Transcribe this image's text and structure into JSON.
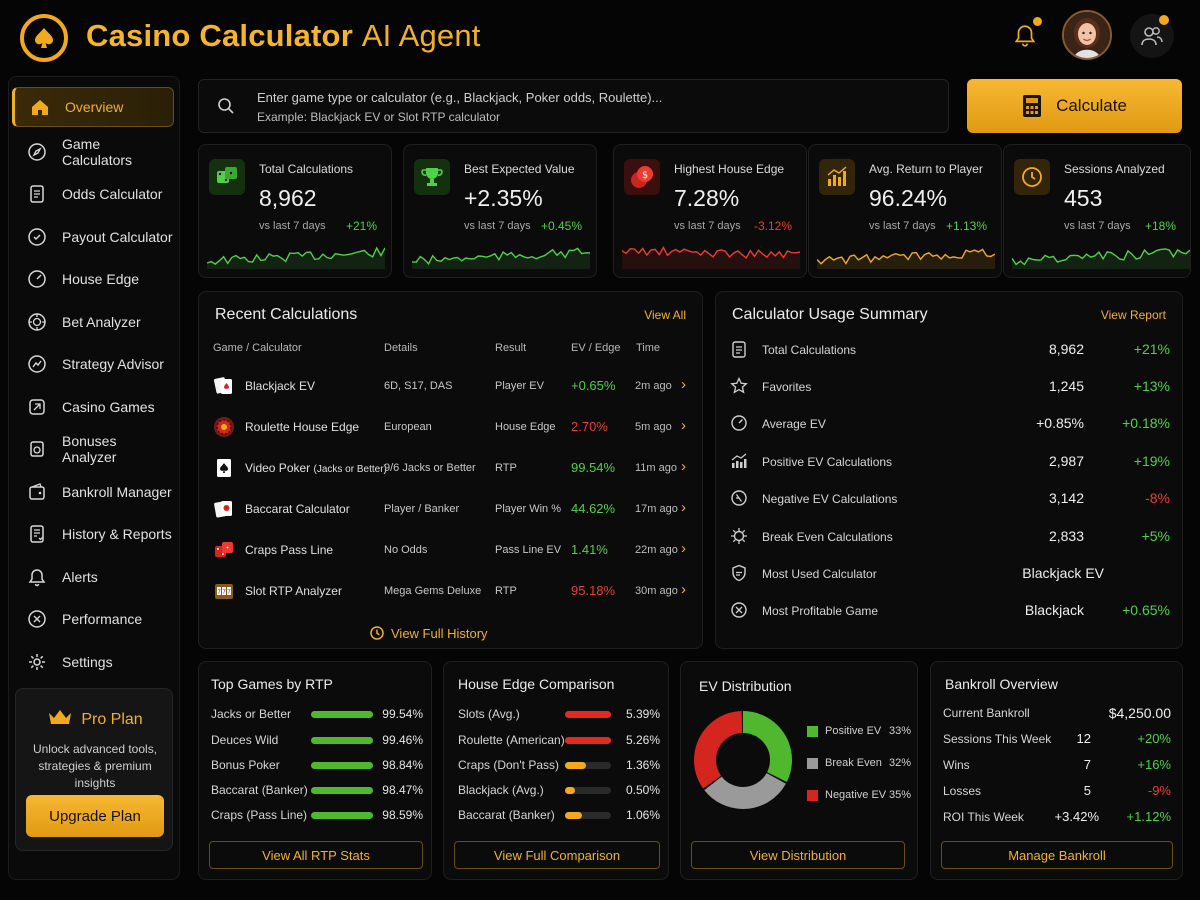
{
  "header": {
    "title_main": "Casino Calculator",
    "title_ai": "AI Agent"
  },
  "sidebar": {
    "items": [
      {
        "label": "Overview",
        "icon": "home-icon"
      },
      {
        "label": "Game Calculators",
        "icon": "compass-icon"
      },
      {
        "label": "Odds Calculator",
        "icon": "document-icon"
      },
      {
        "label": "Payout Calculator",
        "icon": "payout-icon"
      },
      {
        "label": "House Edge",
        "icon": "gauge-icon"
      },
      {
        "label": "Bet Analyzer",
        "icon": "chip-icon"
      },
      {
        "label": "Strategy Advisor",
        "icon": "strategy-icon"
      },
      {
        "label": "Casino Games",
        "icon": "games-icon"
      },
      {
        "label": "Bonuses Analyzer",
        "icon": "bonus-icon"
      },
      {
        "label": "Bankroll Manager",
        "icon": "wallet-icon"
      },
      {
        "label": "History & Reports",
        "icon": "report-icon"
      },
      {
        "label": "Alerts",
        "icon": "bell-icon"
      },
      {
        "label": "Performance",
        "icon": "performance-icon"
      },
      {
        "label": "Settings",
        "icon": "gear-icon"
      }
    ],
    "pro": {
      "title": "Pro Plan",
      "description": "Unlock advanced tools, strategies & premium insights",
      "button": "Upgrade Plan"
    }
  },
  "search": {
    "placeholder_line1": "Enter game type or calculator (e.g., Blackjack, Poker odds, Roulette)...",
    "placeholder_line2": "Example: Blackjack EV or Slot RTP calculator",
    "button": "Calculate"
  },
  "stats": [
    {
      "label": "Total Calculations",
      "value": "8,962",
      "sub": "vs last 7 days",
      "change": "+21%",
      "trend": "up",
      "color": "#4fd147"
    },
    {
      "label": "Best Expected Value",
      "value": "+2.35%",
      "sub": "vs last 7 days",
      "change": "+0.45%",
      "trend": "up",
      "color": "#4fd147"
    },
    {
      "label": "Highest House Edge",
      "value": "7.28%",
      "sub": "vs last 7 days",
      "change": "-3.12%",
      "trend": "down",
      "color": "#ee3b32"
    },
    {
      "label": "Avg. Return to Player",
      "value": "96.24%",
      "sub": "vs last 7 days",
      "change": "+1.13%",
      "trend": "up",
      "color": "#f2a91e"
    },
    {
      "label": "Sessions Analyzed",
      "value": "453",
      "sub": "vs last 7 days",
      "change": "+18%",
      "trend": "up",
      "color": "#4fd147"
    }
  ],
  "recent": {
    "title": "Recent Calculations",
    "link": "View All",
    "columns": [
      "Game / Calculator",
      "Details",
      "Result",
      "EV / Edge",
      "Time"
    ],
    "rows": [
      {
        "game": "Blackjack EV",
        "game_note": "",
        "details": "6D, S17, DAS",
        "result": "Player EV",
        "value": "+0.65%",
        "tone": "green",
        "time": "2m ago"
      },
      {
        "game": "Roulette House Edge",
        "game_note": "",
        "details": "European",
        "result": "House Edge",
        "value": "2.70%",
        "tone": "red",
        "time": "5m ago"
      },
      {
        "game": "Video Poker",
        "game_note": "(Jacks or Better)",
        "details": "9/6 Jacks or Better",
        "result": "RTP",
        "value": "99.54%",
        "tone": "green",
        "time": "11m ago"
      },
      {
        "game": "Baccarat Calculator",
        "game_note": "",
        "details": "Player / Banker",
        "result": "Player Win %",
        "value": "44.62%",
        "tone": "green",
        "time": "17m ago"
      },
      {
        "game": "Craps Pass Line",
        "game_note": "",
        "details": "No Odds",
        "result": "Pass Line EV",
        "value": "1.41%",
        "tone": "green",
        "time": "22m ago"
      },
      {
        "game": "Slot RTP Analyzer",
        "game_note": "",
        "details": "Mega Gems Deluxe",
        "result": "RTP",
        "value": "95.18%",
        "tone": "red",
        "time": "30m ago"
      }
    ],
    "history_link": "View Full History"
  },
  "usage": {
    "title": "Calculator Usage Summary",
    "link": "View Report",
    "rows": [
      {
        "label": "Total Calculations",
        "value": "8,962",
        "change": "+21%",
        "tone": "green"
      },
      {
        "label": "Favorites",
        "value": "1,245",
        "change": "+13%",
        "tone": "green"
      },
      {
        "label": "Average EV",
        "value": "+0.85%",
        "change": "+0.18%",
        "tone": "green",
        "value_tone": "green"
      },
      {
        "label": "Positive EV Calculations",
        "value": "2,987",
        "change": "+19%",
        "tone": "green"
      },
      {
        "label": "Negative EV Calculations",
        "value": "3,142",
        "change": "-8%",
        "tone": "red"
      },
      {
        "label": "Break Even Calculations",
        "value": "2,833",
        "change": "+5%",
        "tone": "green"
      },
      {
        "label": "Most Used Calculator",
        "value": "Blackjack EV",
        "change": "",
        "tone": "green"
      },
      {
        "label": "Most Profitable Game",
        "value": "Blackjack",
        "change": "+0.65%",
        "tone": "green"
      }
    ]
  },
  "top_games": {
    "title": "Top Games by RTP",
    "rows": [
      {
        "label": "Jacks or Better",
        "value": "99.54%",
        "fill": 1.0
      },
      {
        "label": "Deuces Wild",
        "value": "99.46%",
        "fill": 1.0
      },
      {
        "label": "Bonus Poker",
        "value": "98.84%",
        "fill": 1.0
      },
      {
        "label": "Baccarat (Banker)",
        "value": "98.47%",
        "fill": 1.0
      },
      {
        "label": "Craps (Pass Line)",
        "value": "98.59%",
        "fill": 1.0
      }
    ],
    "button": "View All RTP Stats"
  },
  "house_edge": {
    "title": "House Edge Comparison",
    "rows": [
      {
        "label": "Slots (Avg.)",
        "value": "5.39%",
        "fill": 1.0,
        "color": "#e02a22"
      },
      {
        "label": "Roulette (American)",
        "value": "5.26%",
        "fill": 1.0,
        "color": "#e02a22"
      },
      {
        "label": "Craps (Don't Pass)",
        "value": "1.36%",
        "fill": 0.45,
        "color": "#f2a91e"
      },
      {
        "label": "Blackjack (Avg.)",
        "value": "0.50%",
        "fill": 0.22,
        "color": "#f2a91e"
      },
      {
        "label": "Baccarat (Banker)",
        "value": "1.06%",
        "fill": 0.36,
        "color": "#f2a91e"
      }
    ],
    "button": "View Full Comparison"
  },
  "ev_distribution": {
    "title": "EV Distribution",
    "slices": [
      {
        "label": "Positive EV",
        "value": "33%",
        "percent": 33,
        "color": "#4fb82f"
      },
      {
        "label": "Break Even",
        "value": "32%",
        "percent": 32,
        "color": "#9a9a9a"
      },
      {
        "label": "Negative EV",
        "value": "35%",
        "percent": 35,
        "color": "#d4261f"
      }
    ],
    "button": "View Distribution"
  },
  "bankroll": {
    "title": "Bankroll Overview",
    "rows": [
      {
        "label": "Current Bankroll",
        "mid": "",
        "value": "$4,250.00",
        "tone": "white"
      },
      {
        "label": "Sessions This Week",
        "mid": "12",
        "value": "+20%",
        "tone": "green"
      },
      {
        "label": "Wins",
        "mid": "7",
        "value": "+16%",
        "tone": "green"
      },
      {
        "label": "Losses",
        "mid": "5",
        "value": "-9%",
        "tone": "red"
      },
      {
        "label": "ROI This Week",
        "mid": "+3.42%",
        "value": "+1.12%",
        "tone": "green",
        "mid_tone": "green"
      }
    ],
    "button": "Manage Bankroll"
  }
}
